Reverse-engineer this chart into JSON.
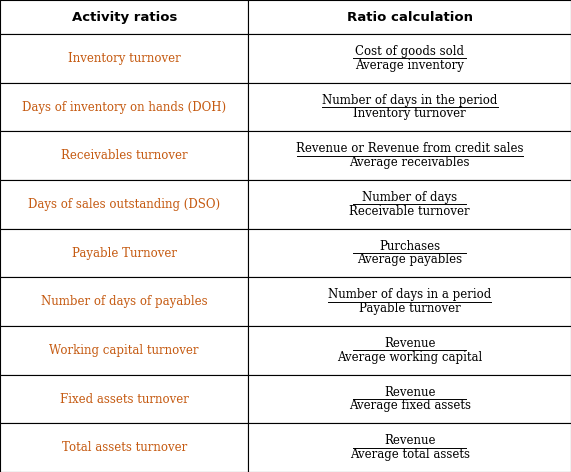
{
  "title_col1": "Activity ratios",
  "title_col2": "Ratio calculation",
  "rows": [
    {
      "left": "Inventory turnover",
      "numerator": "Cost of goods sold",
      "denominator": "Average inventory"
    },
    {
      "left": "Days of inventory on hands (DOH)",
      "numerator": "Number of days in the period",
      "denominator": "Inventory turnover"
    },
    {
      "left": "Receivables turnover",
      "numerator": "Revenue or Revenue from credit sales",
      "denominator": "Average receivables"
    },
    {
      "left": "Days of sales outstanding (DSO)",
      "numerator": "Number of days",
      "denominator": "Receivable turnover"
    },
    {
      "left": "Payable Turnover",
      "numerator": "Purchases",
      "denominator": "Average payables"
    },
    {
      "left": "Number of days of payables",
      "numerator": "Number of days in a period",
      "denominator": "Payable turnover"
    },
    {
      "left": "Working capital turnover",
      "numerator": "Revenue",
      "denominator": "Average working capital"
    },
    {
      "left": "Fixed assets turnover",
      "numerator": "Revenue",
      "denominator": "Average fixed assets"
    },
    {
      "left": "Total assets turnover",
      "numerator": "Revenue",
      "denominator": "Average total assets"
    }
  ],
  "left_text_color": "#c55a11",
  "right_text_color": "#000000",
  "header_bg": "#ffffff",
  "bg_color": "#ffffff",
  "border_color": "#000000",
  "header_fontsize": 9.5,
  "cell_fontsize": 8.5,
  "col_split": 0.435,
  "fig_width": 5.71,
  "fig_height": 4.72,
  "dpi": 100
}
